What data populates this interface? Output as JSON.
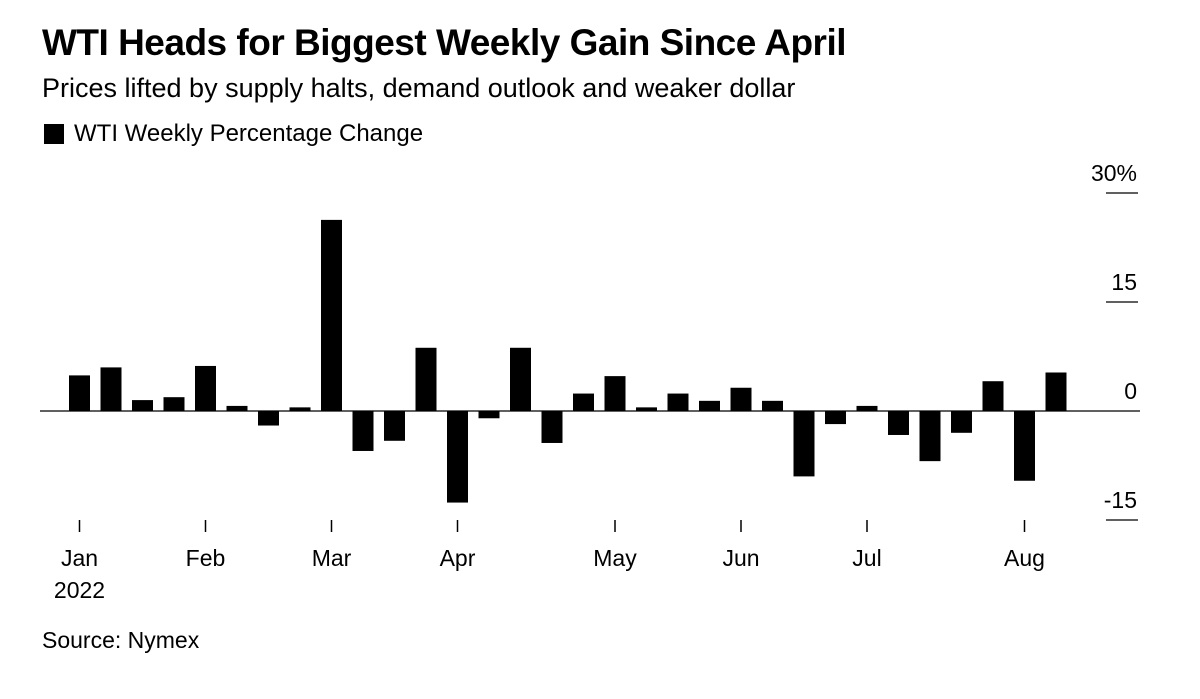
{
  "title": "WTI Heads for Biggest Weekly Gain Since April",
  "subtitle": "Prices lifted by supply halts, demand outlook and weaker dollar",
  "legend_label": "WTI Weekly Percentage Change",
  "source": "Source: Nymex",
  "colors": {
    "bar": "#000000",
    "axis": "#000000",
    "background": "#ffffff"
  },
  "chart_data": {
    "type": "bar",
    "title": "WTI Heads for Biggest Weekly Gain Since April",
    "subtitle": "Prices lifted by supply halts, demand outlook and weaker dollar",
    "xlabel": "",
    "ylabel": "",
    "ylim": [
      -15,
      30
    ],
    "y_ticks": [
      30,
      15,
      0,
      -15
    ],
    "y_tick_labels": [
      "30%",
      "15",
      "0",
      "-15"
    ],
    "x_ticks": [
      {
        "label": "Jan",
        "week_index": 0
      },
      {
        "label": "Feb",
        "week_index": 4
      },
      {
        "label": "Mar",
        "week_index": 8
      },
      {
        "label": "Apr",
        "week_index": 12
      },
      {
        "label": "May",
        "week_index": 17
      },
      {
        "label": "Jun",
        "week_index": 21
      },
      {
        "label": "Jul",
        "week_index": 25
      },
      {
        "label": "Aug",
        "week_index": 30
      }
    ],
    "year_label": "2022",
    "legend": "top-left",
    "grid": false,
    "series": [
      {
        "name": "WTI Weekly Percentage Change",
        "values": [
          4.9,
          6.0,
          1.5,
          1.9,
          6.2,
          0.7,
          -2.0,
          0.5,
          26.3,
          -5.5,
          -4.1,
          8.7,
          -12.6,
          -1.0,
          8.7,
          -4.4,
          2.4,
          4.8,
          0.5,
          2.4,
          1.4,
          3.2,
          1.4,
          -9.0,
          -1.8,
          0.7,
          -3.3,
          -6.9,
          -3.0,
          4.1,
          -9.6,
          5.3
        ]
      }
    ]
  }
}
